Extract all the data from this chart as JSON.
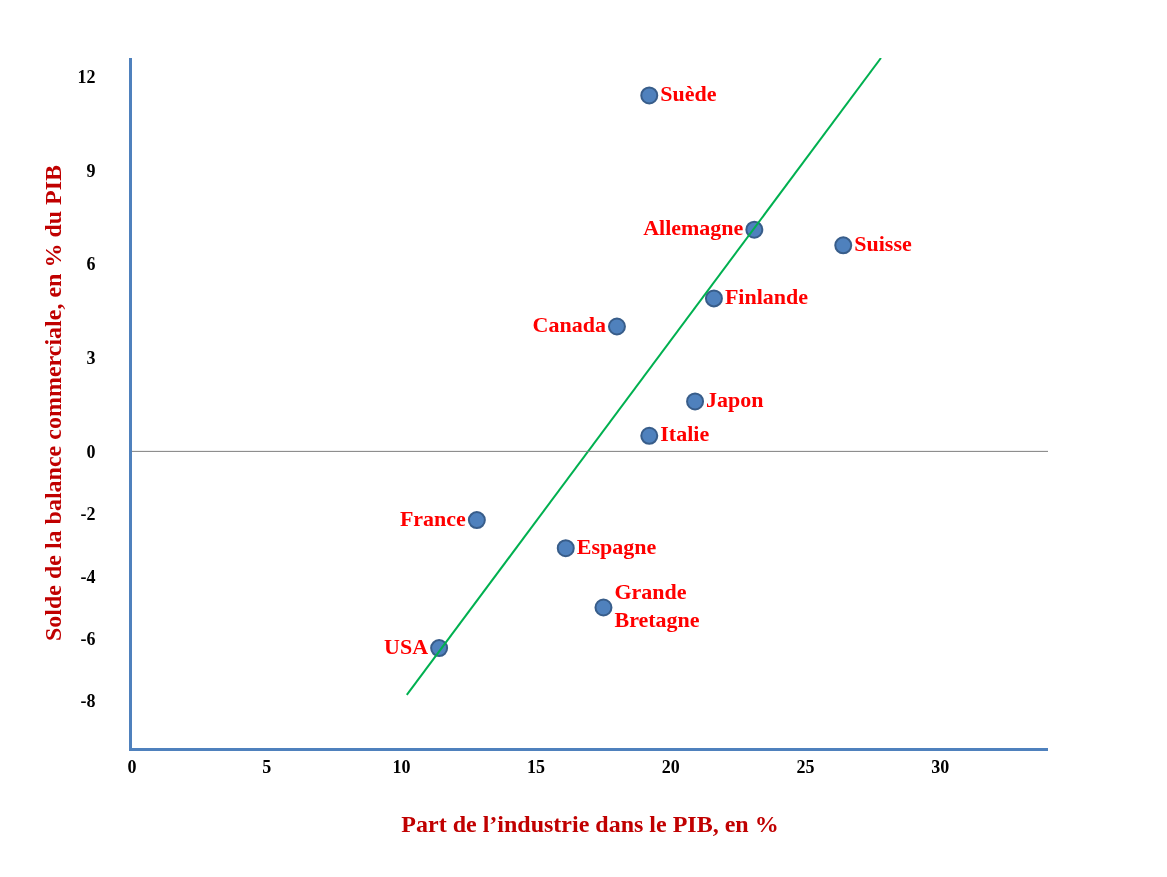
{
  "chart_data": {
    "type": "scatter",
    "xlabel": "Part de l’industrie dans le PIB, en %",
    "ylabel": "Solde de la balance commerciale, en % du PIB",
    "xlim": [
      0,
      34
    ],
    "xticks": [
      0,
      5,
      10,
      15,
      20,
      25,
      30
    ],
    "ylim": [
      -9.5,
      12.6
    ],
    "yticks": [
      12,
      9,
      6,
      3,
      0,
      -2,
      -4,
      -6,
      -8
    ],
    "grid": false,
    "legend": false,
    "marker": "circle",
    "ref_lines": [
      {
        "axis": "y",
        "value": 0,
        "color": "#7f7f7f"
      }
    ],
    "series": [
      {
        "name": "Suède",
        "color": "#4f81bd",
        "x": [
          19.2
        ],
        "values": [
          11.4
        ]
      },
      {
        "name": "Allemagne",
        "color": "#4f81bd",
        "x": [
          23.1
        ],
        "values": [
          7.1
        ]
      },
      {
        "name": "Suisse",
        "color": "#4f81bd",
        "x": [
          26.4
        ],
        "values": [
          6.6
        ]
      },
      {
        "name": "Finlande",
        "color": "#4f81bd",
        "x": [
          21.6
        ],
        "values": [
          4.9
        ]
      },
      {
        "name": "Canada",
        "color": "#4f81bd",
        "x": [
          18.0
        ],
        "values": [
          4.0
        ]
      },
      {
        "name": "Japon",
        "color": "#4f81bd",
        "x": [
          20.9
        ],
        "values": [
          1.6
        ]
      },
      {
        "name": "Italie",
        "color": "#4f81bd",
        "x": [
          19.2
        ],
        "values": [
          0.5
        ]
      },
      {
        "name": "France",
        "color": "#4f81bd",
        "x": [
          12.8
        ],
        "values": [
          -2.2
        ]
      },
      {
        "name": "Espagne",
        "color": "#4f81bd",
        "x": [
          16.1
        ],
        "values": [
          -3.1
        ]
      },
      {
        "name": "Grande Bretagne",
        "color": "#4f81bd",
        "x": [
          17.5
        ],
        "values": [
          -5.0
        ]
      },
      {
        "name": "USA",
        "color": "#4f81bd",
        "x": [
          11.4
        ],
        "values": [
          -6.3
        ]
      },
      {
        "type": "line",
        "color": "#00b050",
        "marker": "none",
        "x": [
          10.2,
          27.8
        ],
        "values": [
          -7.8,
          12.6
        ]
      }
    ]
  }
}
